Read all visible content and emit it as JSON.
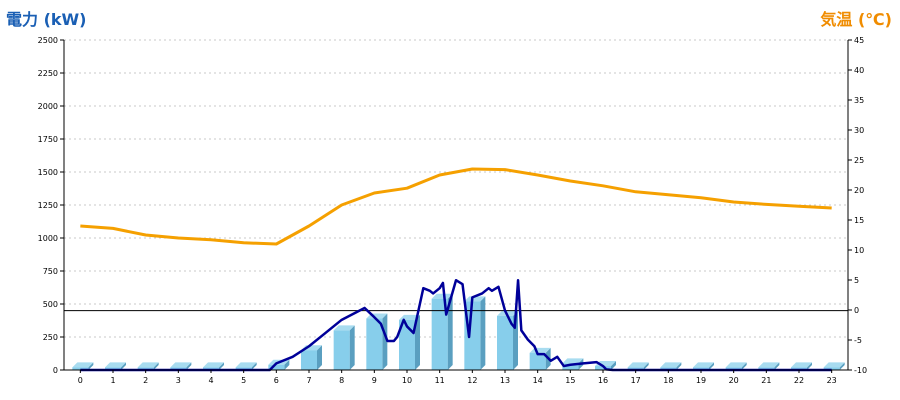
{
  "chart_data": {
    "type": "bar+line",
    "left_axis": {
      "title": "電力 (kW)",
      "color": "#1a5fb4",
      "ylim": [
        0,
        2500
      ],
      "ticks": [
        0,
        250,
        500,
        750,
        1000,
        1250,
        1500,
        1750,
        2000,
        2250,
        2500
      ]
    },
    "right_axis": {
      "title": "気温 (℃)",
      "color": "#f08c00",
      "ylim": [
        -10,
        45
      ],
      "ticks": [
        -10,
        -5,
        0,
        5,
        10,
        15,
        20,
        25,
        30,
        35,
        40,
        45
      ]
    },
    "categories": [
      "0",
      "1",
      "2",
      "3",
      "4",
      "5",
      "6",
      "7",
      "8",
      "9",
      "10",
      "11",
      "12",
      "13",
      "14",
      "15",
      "16",
      "17",
      "18",
      "19",
      "20",
      "21",
      "22",
      "23"
    ],
    "bars": {
      "name": "power",
      "color": "#87ceeb",
      "values": [
        20,
        20,
        20,
        20,
        20,
        20,
        40,
        150,
        300,
        390,
        380,
        540,
        520,
        410,
        130,
        50,
        30,
        20,
        20,
        20,
        20,
        20,
        20,
        20
      ]
    },
    "temperature": {
      "color": "#f5a000",
      "x": [
        0,
        1,
        2,
        3,
        4,
        5,
        6,
        7,
        8,
        9,
        10,
        11,
        12,
        13,
        14,
        15,
        16,
        17,
        18,
        19,
        20,
        21,
        22,
        23
      ],
      "values": [
        14,
        13.6,
        12.5,
        12,
        11.7,
        11.2,
        11,
        14,
        17.5,
        19.5,
        20.3,
        22.5,
        23.5,
        23.4,
        22.5,
        21.5,
        20.7,
        19.7,
        19.2,
        18.7,
        18,
        17.6,
        17.3,
        17
      ]
    },
    "realtime_power": {
      "color": "#000099",
      "x": [
        0,
        1,
        2,
        3,
        4,
        5,
        5.8,
        6,
        6.5,
        7,
        7.5,
        8,
        8.7,
        9,
        9.2,
        9.4,
        9.6,
        9.7,
        9.9,
        10,
        10.2,
        10.5,
        10.7,
        10.8,
        11,
        11.1,
        11.2,
        11.5,
        11.7,
        11.9,
        12,
        12.3,
        12.5,
        12.6,
        12.8,
        13,
        13.2,
        13.3,
        13.4,
        13.5,
        13.7,
        13.9,
        14,
        14.2,
        14.4,
        14.6,
        14.8,
        15,
        15.4,
        15.8,
        16,
        16.1,
        16.3,
        17,
        18,
        19,
        20,
        21,
        22,
        23
      ],
      "values": [
        0,
        0,
        0,
        0,
        0,
        0,
        0,
        50,
        100,
        180,
        280,
        380,
        470,
        400,
        350,
        220,
        220,
        250,
        380,
        330,
        280,
        620,
        600,
        580,
        620,
        660,
        420,
        680,
        650,
        250,
        550,
        580,
        620,
        600,
        630,
        450,
        350,
        320,
        680,
        300,
        230,
        180,
        120,
        120,
        70,
        100,
        30,
        40,
        50,
        60,
        30,
        5,
        0,
        0,
        0,
        0,
        0,
        0,
        0,
        0
      ]
    },
    "reference_line": {
      "value": 450,
      "color": "#000000"
    },
    "grid": true
  }
}
